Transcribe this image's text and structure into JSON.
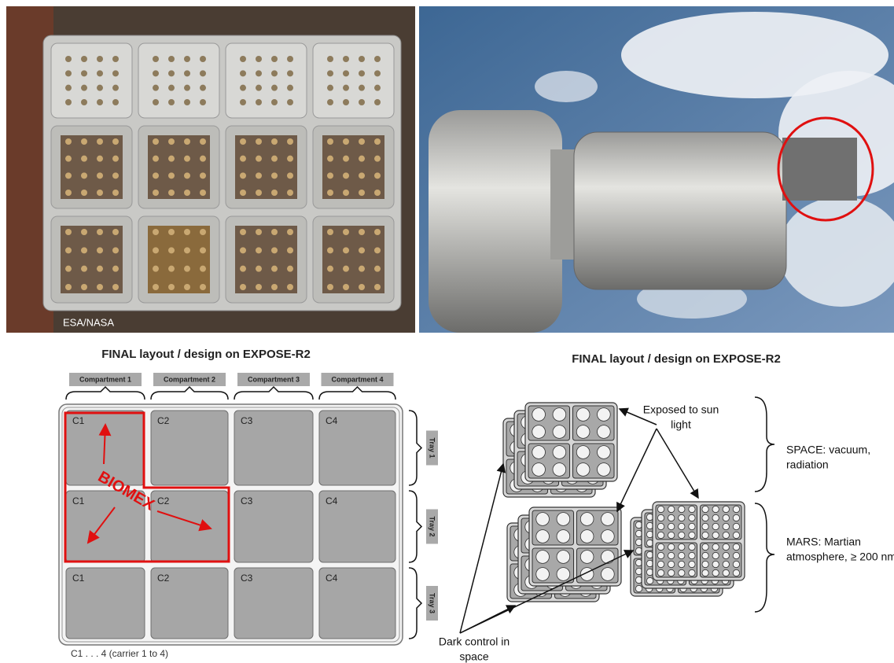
{
  "photo_credit": "ESA/NASA",
  "left_diagram": {
    "title": "FINAL layout / design on EXPOSE-R2",
    "compartments": [
      "Compartment 1",
      "Compartment 2",
      "Compartment 3",
      "Compartment 4"
    ],
    "trays": [
      "Tray 1",
      "Tray 2",
      "Tray 3"
    ],
    "carriers": [
      [
        "C1",
        "C2",
        "C3",
        "C4"
      ],
      [
        "C1",
        "C2",
        "C3",
        "C4"
      ],
      [
        "C1",
        "C2",
        "C3",
        "C4"
      ]
    ],
    "highlight_label": "BIOMEX",
    "footnote": "C1 . . . 4 (carrier 1 to 4)"
  },
  "right_diagram": {
    "title": "FINAL layout / design on EXPOSE-R2",
    "exposed": [
      "Exposed to sun",
      "light"
    ],
    "space": [
      "SPACE: vacuum,",
      "radiation"
    ],
    "mars": [
      "MARS: Martian",
      "atmosphere, ≥ 200 nm"
    ],
    "dark": [
      "Dark control in",
      "space"
    ]
  }
}
